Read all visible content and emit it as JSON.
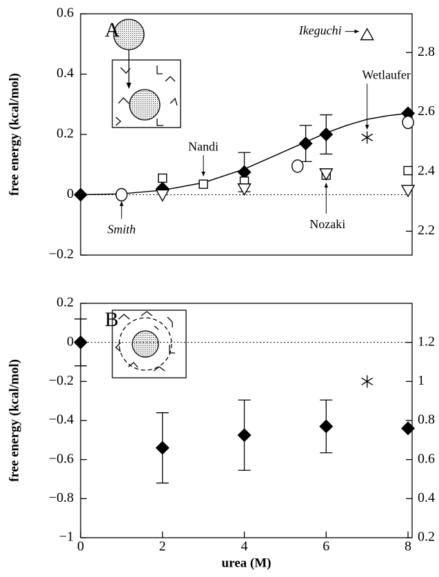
{
  "chart_data": [
    {
      "type": "scatter",
      "panel_label": "A",
      "ylabel": "free energy (kcal/mol)",
      "xlim": [
        0,
        8.1
      ],
      "ylim": [
        -0.2,
        0.6
      ],
      "yticks": [
        {
          "value": -0.2,
          "label": "−0.2"
        },
        0,
        0.2,
        0.4,
        0.6
      ],
      "y2lim": [
        2.12,
        2.93
      ],
      "y2ticks": [
        2.2,
        2.4,
        2.6,
        2.8
      ],
      "zero_line": true,
      "series": [
        {
          "marker": "line",
          "color": "#000000",
          "x": [
            0,
            1,
            2,
            3,
            4,
            4.5,
            5,
            5.5,
            6,
            6.5,
            7,
            7.5,
            8
          ],
          "values": [
            0,
            0.003,
            0.015,
            0.04,
            0.085,
            0.115,
            0.145,
            0.175,
            0.205,
            0.23,
            0.25,
            0.262,
            0.27
          ]
        },
        {
          "marker": "diamond",
          "color": "#000000",
          "x": [
            0,
            2,
            4,
            5.5,
            6,
            8
          ],
          "values": [
            0,
            0.02,
            0.075,
            0.17,
            0.2,
            0.27
          ],
          "errors": [
            null,
            null,
            0.065,
            0.06,
            0.065,
            null
          ]
        },
        {
          "name": "Smith",
          "marker": "circle",
          "color": "#000000",
          "x": [
            1
          ],
          "values": [
            0
          ]
        },
        {
          "marker": "circle",
          "color": "#000000",
          "x": [
            5.3,
            8
          ],
          "values": [
            0.095,
            0.24
          ]
        },
        {
          "name": "Nandi",
          "marker": "square",
          "color": "#000000",
          "x": [
            2,
            3,
            4,
            6,
            8
          ],
          "values": [
            0.055,
            0.035,
            0.045,
            0.065,
            0.08
          ]
        },
        {
          "name": "Nozaki",
          "marker": "triangle-down",
          "color": "#000000",
          "x": [
            2,
            4,
            6,
            8
          ],
          "values": [
            0,
            0.02,
            0.07,
            0.015
          ]
        },
        {
          "name": "Wetlaufer",
          "marker": "asterisk",
          "color": "#000000",
          "x": [
            7
          ],
          "values": [
            0.19
          ]
        },
        {
          "name": "Ikeguchi",
          "marker": "triangle-up",
          "color": "#000000",
          "x": [
            7
          ],
          "values": [
            0.53
          ]
        }
      ]
    },
    {
      "type": "scatter",
      "panel_label": "B",
      "ylabel": "free energy (kcal/mol)",
      "xlabel": "urea (M)",
      "xlim": [
        0,
        8.1
      ],
      "xticks": [
        0,
        2,
        4,
        6,
        8
      ],
      "ylim": [
        -1,
        0.2
      ],
      "yticks": [
        {
          "value": -1,
          "label": "−1"
        },
        {
          "value": -0.8,
          "label": "−0.8"
        },
        {
          "value": -0.6,
          "label": "−0.6"
        },
        {
          "value": -0.4,
          "label": "−0.4"
        },
        {
          "value": -0.2,
          "label": "−0.2"
        },
        0,
        0.2
      ],
      "y2lim": [
        0.2,
        1.4
      ],
      "y2ticks": [
        0.2,
        0.4,
        0.6,
        0.8,
        1,
        1.2
      ],
      "zero_line": true,
      "series": [
        {
          "marker": "diamond",
          "color": "#000000",
          "x": [
            0,
            2,
            4,
            6,
            8
          ],
          "values": [
            0,
            -0.54,
            -0.475,
            -0.43,
            -0.44
          ],
          "errors": [
            0.12,
            0.18,
            0.18,
            0.135,
            null
          ]
        },
        {
          "marker": "asterisk",
          "color": "#000000",
          "x": [
            7
          ],
          "values": [
            -0.2
          ]
        }
      ]
    }
  ]
}
